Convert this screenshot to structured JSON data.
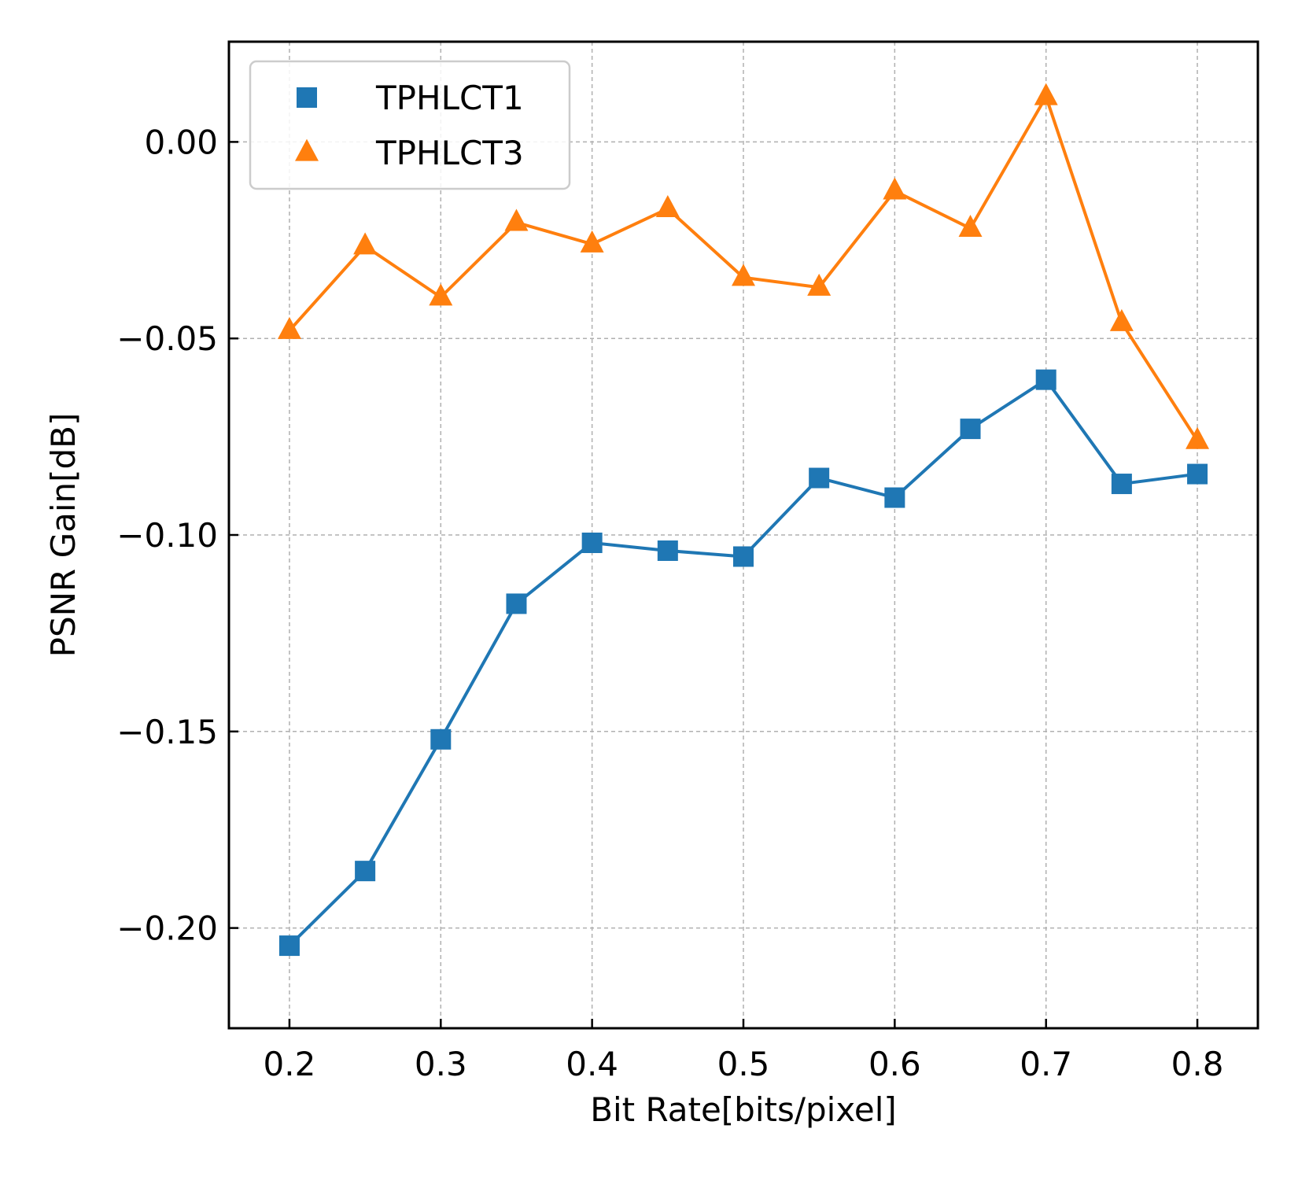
{
  "chart_data": {
    "type": "line",
    "xlabel": "Bit Rate[bits/pixel]",
    "ylabel": "PSNR Gain[dB]",
    "xlim": [
      0.16,
      0.84
    ],
    "ylim": [
      -0.2255,
      0.0255
    ],
    "x_ticks": [
      0.2,
      0.3,
      0.4,
      0.5,
      0.6,
      0.7,
      0.8
    ],
    "x_tick_labels": [
      "0.2",
      "0.3",
      "0.4",
      "0.5",
      "0.6",
      "0.7",
      "0.8"
    ],
    "y_ticks": [
      0.0,
      -0.05,
      -0.1,
      -0.15,
      -0.2
    ],
    "y_tick_labels": [
      "0.00",
      "−0.05",
      "−0.10",
      "−0.15",
      "−0.20"
    ],
    "grid": true,
    "legend_position": "top-left",
    "x": [
      0.2,
      0.25,
      0.3,
      0.35,
      0.4,
      0.45,
      0.5,
      0.55,
      0.6,
      0.65,
      0.7,
      0.75,
      0.8
    ],
    "series": [
      {
        "name": "TPHLCT1",
        "color": "#1f77b4",
        "marker": "square",
        "values": [
          -0.2045,
          -0.1855,
          -0.152,
          -0.1175,
          -0.102,
          -0.104,
          -0.1055,
          -0.0855,
          -0.0905,
          -0.073,
          -0.0605,
          -0.087,
          -0.0845
        ]
      },
      {
        "name": "TPHLCT3",
        "color": "#ff7f0e",
        "marker": "triangle",
        "values": [
          -0.048,
          -0.0265,
          -0.0395,
          -0.0205,
          -0.026,
          -0.017,
          -0.0345,
          -0.037,
          -0.0125,
          -0.022,
          0.0115,
          -0.046,
          -0.076
        ]
      }
    ]
  }
}
